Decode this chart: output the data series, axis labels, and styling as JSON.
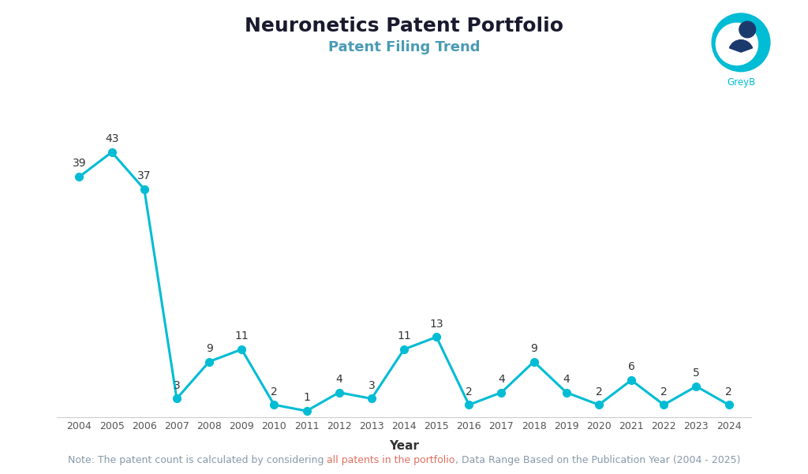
{
  "title": "Neuronetics Patent Portfolio",
  "subtitle": "Patent Filing Trend",
  "xlabel": "Year",
  "note_before": "Note: The patent count is calculated by considering ",
  "note_highlight": "all patents in the portfolio",
  "note_after": ", Data Range Based on the Publication Year (2004 - 2025)",
  "years": [
    2004,
    2005,
    2006,
    2007,
    2008,
    2009,
    2010,
    2011,
    2012,
    2013,
    2014,
    2015,
    2016,
    2017,
    2018,
    2019,
    2020,
    2021,
    2022,
    2023,
    2024
  ],
  "values": [
    39,
    43,
    37,
    3,
    9,
    11,
    2,
    1,
    4,
    3,
    11,
    13,
    2,
    4,
    9,
    4,
    2,
    6,
    2,
    5,
    2
  ],
  "line_color": "#00BCD4",
  "marker_color": "#00BCD4",
  "background_color": "#FFFFFF",
  "title_fontsize": 18,
  "subtitle_fontsize": 13,
  "label_fontsize": 10,
  "note_fontsize": 9,
  "note_color": "#8899aa",
  "note_highlight_color": "#E07060",
  "title_color": "#1a1a2e",
  "subtitle_color": "#4A9BB5",
  "xlabel_color": "#333333",
  "tick_color": "#555555",
  "ylim": [
    0,
    50
  ],
  "marker_size": 7,
  "line_width": 2.2,
  "greyb_text_color": "#00BCD4"
}
